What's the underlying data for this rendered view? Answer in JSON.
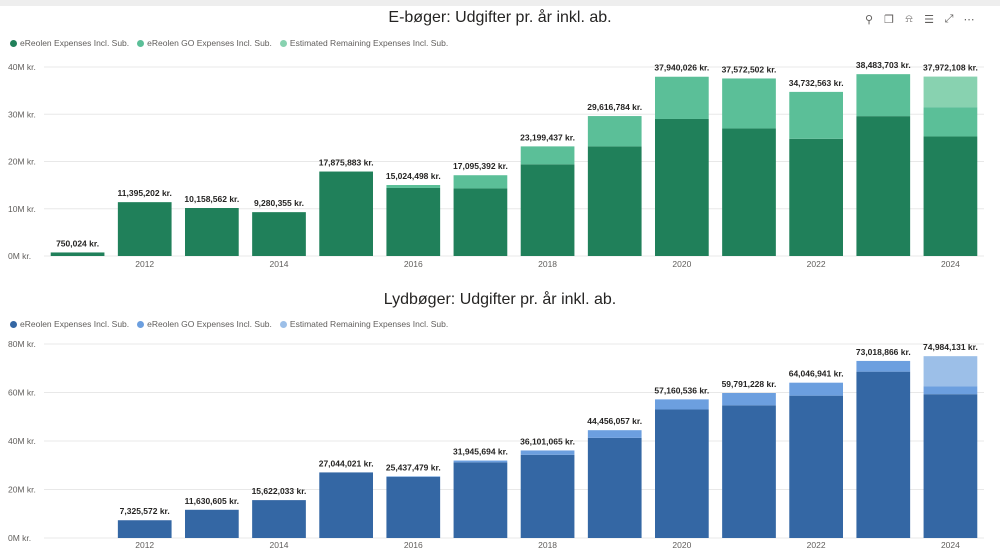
{
  "toolbar": {
    "icons": [
      "pin-icon",
      "copy-icon",
      "bell-icon",
      "filter-icon",
      "expand-icon",
      "more-icon"
    ],
    "glyphs": [
      "⚲",
      "❐",
      "⍾",
      "☰",
      "⤢",
      "⋯"
    ]
  },
  "chart_data": [
    {
      "type": "bar",
      "stacked": true,
      "title": "E-bøger: Udgifter pr. år inkl. ab.",
      "categories": [
        "2011",
        "2012",
        "2013",
        "2014",
        "2015",
        "2016",
        "2017",
        "2018",
        "2019",
        "2020",
        "2021",
        "2022",
        "2023",
        "2024"
      ],
      "x_tick_labels": [
        "",
        "2012",
        "",
        "2014",
        "",
        "2016",
        "",
        "2018",
        "",
        "2020",
        "",
        "2022",
        "",
        "2024"
      ],
      "y_ticks": [
        0,
        10000000,
        20000000,
        30000000,
        40000000
      ],
      "y_tick_labels": [
        "0M kr.",
        "10M kr.",
        "20M kr.",
        "30M kr.",
        "40M kr."
      ],
      "ylim": [
        0,
        40000000
      ],
      "grid": true,
      "legend_position": "top-left",
      "series": [
        {
          "name": "eReolen Expenses Incl. Sub.",
          "color": "#20805a",
          "values": [
            750024,
            11395202,
            10158562,
            9280355,
            17875883,
            14400000,
            14300000,
            19400000,
            23200000,
            29000000,
            27000000,
            24800000,
            29600000,
            25300000
          ]
        },
        {
          "name": "eReolen GO Expenses Incl. Sub.",
          "color": "#5bbf98",
          "values": [
            0,
            0,
            0,
            0,
            0,
            624498,
            2795392,
            3799437,
            6416784,
            8940026,
            10572502,
            9932563,
            8883703,
            6200000
          ]
        },
        {
          "name": "Estimated Remaining Expenses Incl. Sub.",
          "color": "#88d2b0",
          "values": [
            0,
            0,
            0,
            0,
            0,
            0,
            0,
            0,
            0,
            0,
            0,
            0,
            0,
            6472108
          ]
        }
      ],
      "totals": [
        750024,
        11395202,
        10158562,
        9280355,
        17875883,
        15024498,
        17095392,
        23199437,
        29616784,
        37940026,
        37572502,
        34732563,
        38483703,
        37972108
      ],
      "total_labels": [
        "750,024 kr.",
        "11,395,202 kr.",
        "10,158,562 kr.",
        "9,280,355 kr.",
        "17,875,883 kr.",
        "15,024,498 kr.",
        "17,095,392 kr.",
        "23,199,437 kr.",
        "29,616,784 kr.",
        "37,940,026 kr.",
        "37,572,502 kr.",
        "34,732,563 kr.",
        "38,483,703 kr.",
        "37,972,108 kr."
      ]
    },
    {
      "type": "bar",
      "stacked": true,
      "title": "Lydbøger: Udgifter pr. år inkl. ab.",
      "categories": [
        "2011",
        "2012",
        "2013",
        "2014",
        "2015",
        "2016",
        "2017",
        "2018",
        "2019",
        "2020",
        "2021",
        "2022",
        "2023",
        "2024"
      ],
      "x_tick_labels": [
        "",
        "2012",
        "",
        "2014",
        "",
        "2016",
        "",
        "2018",
        "",
        "2020",
        "",
        "2022",
        "",
        "2024"
      ],
      "y_ticks": [
        0,
        20000000,
        40000000,
        60000000,
        80000000
      ],
      "y_tick_labels": [
        "0M kr.",
        "20M kr.",
        "40M kr.",
        "60M kr.",
        "80M kr."
      ],
      "ylim": [
        0,
        80000000
      ],
      "grid": true,
      "legend_position": "top-left",
      "series": [
        {
          "name": "eReolen Expenses Incl. Sub.",
          "color": "#3467a4",
          "values": [
            0,
            7325572,
            11630605,
            15622033,
            27044021,
            25200000,
            31200000,
            34300000,
            41300000,
            53000000,
            54700000,
            58700000,
            68600000,
            59300000
          ]
        },
        {
          "name": "eReolen GO Expenses Incl. Sub.",
          "color": "#6c9fdf",
          "values": [
            0,
            0,
            0,
            0,
            0,
            237479,
            745694,
            1801065,
            3156057,
            4160536,
            5091228,
            5346941,
            4418866,
            3300000
          ]
        },
        {
          "name": "Estimated Remaining Expenses Incl. Sub.",
          "color": "#9cbfe8",
          "values": [
            0,
            0,
            0,
            0,
            0,
            0,
            0,
            0,
            0,
            0,
            0,
            0,
            0,
            12384131
          ]
        }
      ],
      "totals": [
        0,
        7325572,
        11630605,
        15622033,
        27044021,
        25437479,
        31945694,
        36101065,
        44456057,
        57160536,
        59791228,
        64046941,
        73018866,
        74984131
      ],
      "total_labels": [
        "",
        "7,325,572 kr.",
        "11,630,605 kr.",
        "15,622,033 kr.",
        "27,044,021 kr.",
        "25,437,479 kr.",
        "31,945,694 kr.",
        "36,101,065 kr.",
        "44,456,057 kr.",
        "57,160,536 kr.",
        "59,791,228 kr.",
        "64,046,941 kr.",
        "73,018,866 kr.",
        "74,984,131 kr."
      ]
    }
  ]
}
